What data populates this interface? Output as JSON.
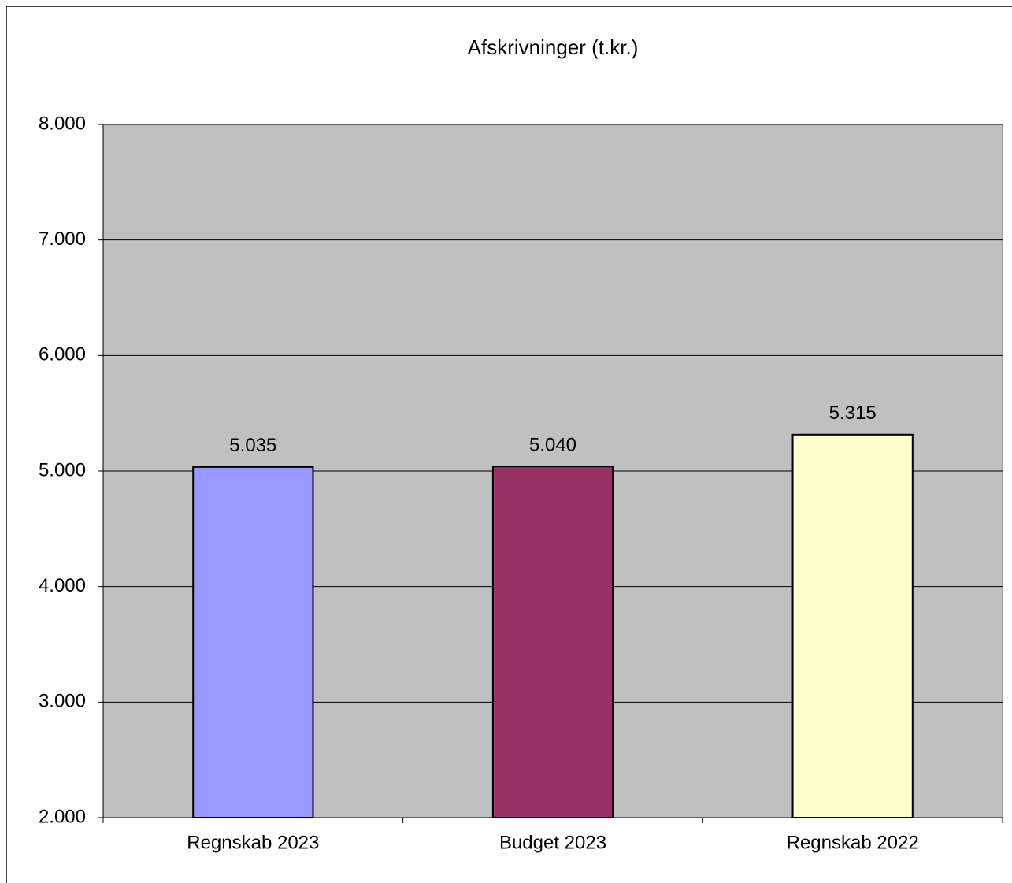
{
  "chart_data": {
    "type": "bar",
    "title": "Afskrivninger  (t.kr.)",
    "categories": [
      "Regnskab 2023",
      "Budget 2023",
      "Regnskab 2022"
    ],
    "values": [
      5035,
      5040,
      5315
    ],
    "value_labels": [
      "5.035",
      "5.040",
      "5.315"
    ],
    "colors": [
      "#9999ff",
      "#993366",
      "#ffffcc"
    ],
    "ylim": [
      2000,
      8000
    ],
    "yticks": [
      {
        "value": 2000,
        "label": "2.000"
      },
      {
        "value": 3000,
        "label": "3.000"
      },
      {
        "value": 4000,
        "label": "4.000"
      },
      {
        "value": 5000,
        "label": "5.000"
      },
      {
        "value": 6000,
        "label": "6.000"
      },
      {
        "value": 7000,
        "label": "7.000"
      },
      {
        "value": 8000,
        "label": "8.000"
      }
    ],
    "grid": true,
    "plot_background": "#c0c0c0"
  }
}
